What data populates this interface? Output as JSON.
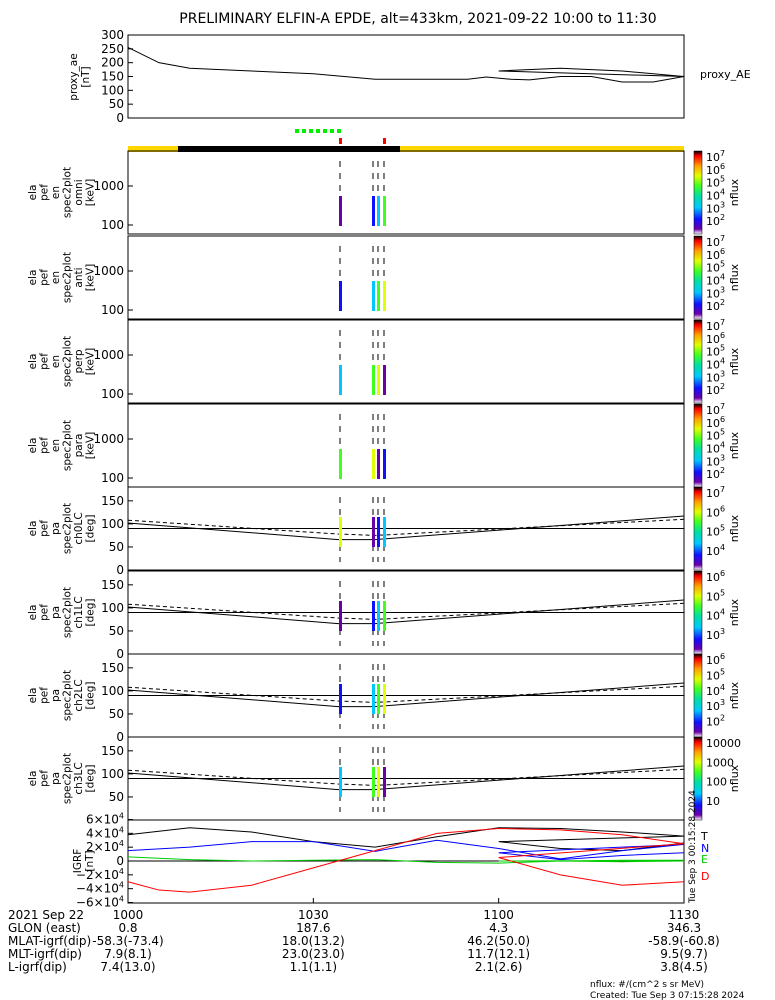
{
  "title": "PRELIMINARY ELFIN-A EPDE, alt=433km, 2021-09-22 10:00 to 11:30",
  "chart_data": [
    {
      "type": "line",
      "panel": "proxy_ae",
      "ylabel": [
        "proxy_ae",
        "[nT]"
      ],
      "yticks": [
        "300",
        "250",
        "200",
        "150",
        "100",
        "50",
        "0"
      ],
      "ylim": [
        0,
        300
      ],
      "series": [
        {
          "name": "proxy_AE",
          "x": [
            1000,
            1005,
            1010,
            1020,
            1030,
            1040,
            1050,
            1055,
            1058,
            1062,
            1065,
            1070,
            1075,
            1080,
            1085,
            1090,
            1100,
            1110,
            1120,
            1130
          ],
          "values": [
            255,
            200,
            180,
            170,
            160,
            140,
            140,
            140,
            148,
            140,
            138,
            150,
            150,
            130,
            130,
            150,
            170,
            180,
            170,
            150
          ]
        }
      ]
    },
    {
      "type": "heatmap",
      "panel": "spec2plot_omni",
      "ylabel": [
        "ela",
        "pef",
        "en",
        "spec2plot",
        "omni",
        "[keV]"
      ],
      "yticks": [
        "1000",
        "100"
      ],
      "colorbar": {
        "label": "nflux",
        "ticks": [
          "10^7",
          "10^6",
          "10^5",
          "10^4",
          "10^3",
          "10^2"
        ]
      }
    },
    {
      "type": "heatmap",
      "panel": "spec2plot_anti",
      "ylabel": [
        "ela",
        "pef",
        "en",
        "spec2plot",
        "anti",
        "[keV]"
      ],
      "yticks": [
        "1000",
        "100"
      ],
      "colorbar": {
        "label": "nflux",
        "ticks": [
          "10^7",
          "10^6",
          "10^5",
          "10^4",
          "10^3",
          "10^2"
        ]
      }
    },
    {
      "type": "heatmap",
      "panel": "spec2plot_perp",
      "ylabel": [
        "ela",
        "pef",
        "en",
        "spec2plot",
        "perp",
        "[keV]"
      ],
      "yticks": [
        "1000",
        "100"
      ],
      "colorbar": {
        "label": "nflux",
        "ticks": [
          "10^7",
          "10^6",
          "10^5",
          "10^4",
          "10^3",
          "10^2"
        ]
      }
    },
    {
      "type": "heatmap",
      "panel": "spec2plot_para",
      "ylabel": [
        "ela",
        "pef",
        "en",
        "spec2plot",
        "para",
        "[keV]"
      ],
      "yticks": [
        "1000",
        "100"
      ],
      "colorbar": {
        "label": "nflux",
        "ticks": [
          "10^7",
          "10^6",
          "10^5",
          "10^4",
          "10^3",
          "10^2"
        ]
      }
    },
    {
      "type": "heatmap",
      "panel": "spec2plot_ch0LC",
      "ylabel": [
        "ela",
        "pef",
        "pa",
        "spec2plot",
        "ch0LC",
        "[deg]"
      ],
      "yticks": [
        "150",
        "100",
        "50",
        "0"
      ],
      "ylim": [
        0,
        180
      ],
      "colorbar": {
        "label": "nflux",
        "ticks": [
          "10^7",
          "10^6",
          "10^5",
          "10^4"
        ]
      }
    },
    {
      "type": "heatmap",
      "panel": "spec2plot_ch1LC",
      "ylabel": [
        "ela",
        "pef",
        "pa",
        "spec2plot",
        "ch1LC",
        "[deg]"
      ],
      "yticks": [
        "150",
        "100",
        "50",
        "0"
      ],
      "ylim": [
        0,
        180
      ],
      "colorbar": {
        "label": "nflux",
        "ticks": [
          "10^6",
          "10^5",
          "10^4",
          "10^3"
        ]
      }
    },
    {
      "type": "heatmap",
      "panel": "spec2plot_ch2LC",
      "ylabel": [
        "ela",
        "pef",
        "pa",
        "spec2plot",
        "ch2LC",
        "[deg]"
      ],
      "yticks": [
        "150",
        "100",
        "50",
        "0"
      ],
      "ylim": [
        0,
        180
      ],
      "colorbar": {
        "label": "nflux",
        "ticks": [
          "10^6",
          "10^5",
          "10^4",
          "10^3",
          "10^2"
        ]
      }
    },
    {
      "type": "heatmap",
      "panel": "spec2plot_ch3LC",
      "ylabel": [
        "ela",
        "pef",
        "pa",
        "spec2plot",
        "ch3LC",
        "[deg]"
      ],
      "yticks": [
        "150",
        "100",
        "50"
      ],
      "ylim": [
        0,
        180
      ],
      "colorbar": {
        "label": "nflux",
        "ticks": [
          "10000",
          "1000",
          "100",
          "10"
        ]
      }
    },
    {
      "type": "line",
      "panel": "IGRF",
      "ylabel": [
        "IGRF",
        "[nT]"
      ],
      "yticks": [
        "6×10^4",
        "4×10^4",
        "2×10^4",
        "0",
        "−2×10^4",
        "−4×10^4",
        "−6×10^4"
      ],
      "ylim": [
        -60000,
        60000
      ],
      "series": [
        {
          "name": "T",
          "color": "#000000",
          "x": [
            1000,
            1010,
            1020,
            1030,
            1040,
            1050,
            1060,
            1070,
            1080,
            1090,
            1100,
            1110,
            1120,
            1130
          ],
          "values": [
            38000,
            48000,
            42000,
            28000,
            20000,
            35000,
            48000,
            47000,
            42000,
            36000,
            28000,
            18000,
            15000,
            26000
          ]
        },
        {
          "name": "N",
          "color": "#0000ff",
          "x": [
            1000,
            1010,
            1020,
            1030,
            1040,
            1050,
            1060,
            1070,
            1080,
            1090,
            1100,
            1110,
            1120,
            1130
          ],
          "values": [
            15000,
            20000,
            28000,
            28000,
            14000,
            30000,
            18000,
            3000,
            15000,
            24000,
            12000,
            2000,
            8000,
            12000
          ]
        },
        {
          "name": "E",
          "color": "#00cc00",
          "x": [
            1000,
            1010,
            1020,
            1030,
            1040,
            1050,
            1060,
            1070,
            1080,
            1090,
            1100,
            1110,
            1120,
            1130
          ],
          "values": [
            6000,
            2000,
            0,
            1000,
            2000,
            -2000,
            -3000,
            0,
            1000,
            1000,
            0,
            0,
            -1000,
            0
          ]
        },
        {
          "name": "D",
          "color": "#ff0000",
          "x": [
            1000,
            1005,
            1010,
            1020,
            1030,
            1040,
            1050,
            1060,
            1070,
            1080,
            1090,
            1100,
            1110,
            1120,
            1130
          ],
          "values": [
            -30000,
            -42000,
            -45000,
            -35000,
            -10000,
            15000,
            40000,
            47000,
            45000,
            38000,
            25000,
            5000,
            -20000,
            -35000,
            -30000
          ]
        }
      ]
    }
  ],
  "xaxis": {
    "tick_labels": [
      "1000",
      "1030",
      "1100",
      "1130"
    ],
    "rows": [
      {
        "label": "2021 Sep 22",
        "values": [
          "1000",
          "1030",
          "1100",
          "1130"
        ]
      },
      {
        "label": "GLON (east)",
        "values": [
          "0.8",
          "187.6",
          "4.3",
          "346.3"
        ]
      },
      {
        "label": "MLAT-igrf(dip)",
        "values": [
          "-58.3(-73.4)",
          "18.0(13.2)",
          "46.2(50.0)",
          "-58.9(-60.8)"
        ]
      },
      {
        "label": "MLT-igrf(dip)",
        "values": [
          "7.9(8.1)",
          "23.0(23.0)",
          "11.7(12.1)",
          "9.5(9.7)"
        ]
      },
      {
        "label": "L-igrf(dip)",
        "values": [
          "7.4(13.0)",
          "1.1(1.1)",
          "2.1(2.6)",
          "3.8(4.5)"
        ]
      }
    ]
  },
  "notes": {
    "units": "nflux: #/(cm^2 s sr MeV)",
    "created": "Created: Tue Sep  3 07:15:28 2024",
    "side_stamp": "Tue Sep  3 00:15:28 2024"
  },
  "colors": {
    "sunlight_bar": "#ffd700",
    "shadow_bar": "#000000",
    "marker_green": "#00ee00",
    "marker_red": "#ff0000"
  }
}
